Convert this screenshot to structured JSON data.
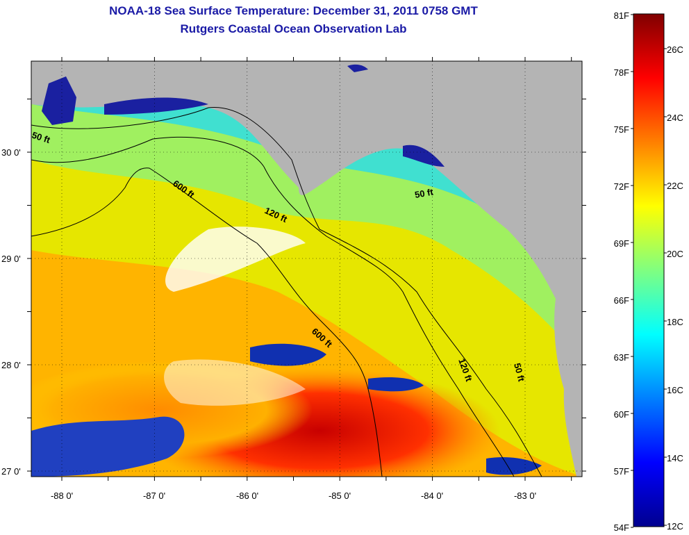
{
  "title": "NOAA-18 Sea Surface Temperature:  December 31, 2011 0758 GMT",
  "subtitle": "Rutgers Coastal Ocean Observation Lab",
  "map": {
    "lon_labels": [
      "-88 0'",
      "-87 0'",
      "-86 0'",
      "-85 0'",
      "-84 0'",
      "-83 0'"
    ],
    "lat_labels": [
      "30 0'",
      "29 0'",
      "28 0'",
      "27 0'"
    ],
    "contour_labels": [
      "50 ft",
      "600 ft",
      "120 ft",
      "50 ft",
      "600 ft",
      "120 ft",
      "50 ft"
    ],
    "land_color": "#b4b4b4",
    "cloud_color": "#ffffff"
  },
  "colorbar": {
    "fahrenheit_labels": [
      "81F",
      "78F",
      "75F",
      "72F",
      "69F",
      "66F",
      "63F",
      "60F",
      "57F",
      "54F"
    ],
    "celsius_labels": [
      "26C",
      "24C",
      "22C",
      "20C",
      "18C",
      "16C",
      "14C",
      "12C"
    ],
    "colormap": "jet"
  }
}
